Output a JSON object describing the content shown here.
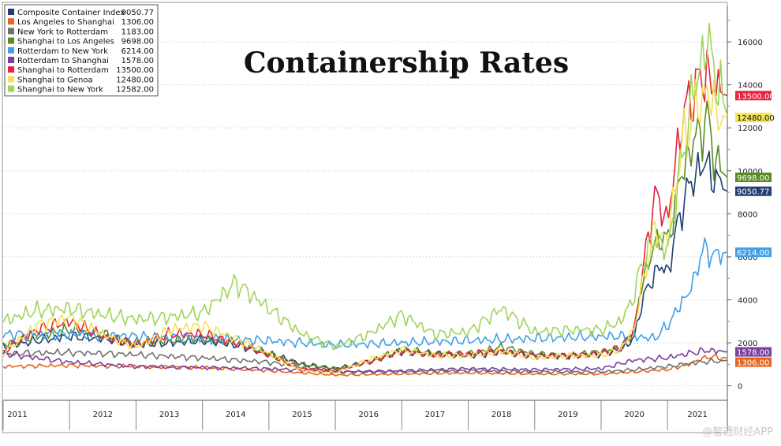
{
  "chart_data": {
    "type": "line",
    "title": "Containership Rates",
    "xlabel": "",
    "ylabel": "",
    "x_start": 2011.0,
    "x_end": 2021.9,
    "ylim": [
      -600,
      17800
    ],
    "y_ticks": [
      0,
      2000,
      4000,
      6000,
      8000,
      10000,
      12000,
      14000,
      16000
    ],
    "years": [
      "2011",
      "2012",
      "2013",
      "2014",
      "2015",
      "2016",
      "2017",
      "2018",
      "2019",
      "2020",
      "2021"
    ],
    "grid": true,
    "legend_position": "top-left",
    "series": [
      {
        "name": "Composite Container Index",
        "last": "9050.77",
        "color": "#1f3f73",
        "x": [
          2011.0,
          2011.5,
          2012.0,
          2012.5,
          2013.0,
          2013.5,
          2014.0,
          2014.5,
          2015.0,
          2015.5,
          2016.0,
          2016.5,
          2017.0,
          2017.5,
          2018.0,
          2018.5,
          2019.0,
          2019.5,
          2020.0,
          2020.3,
          2020.5,
          2020.6,
          2020.8,
          2020.9,
          2021.0,
          2021.2,
          2021.4,
          2021.6,
          2021.7,
          2021.8,
          2021.9
        ],
        "values": [
          1800,
          2100,
          2300,
          2200,
          1900,
          2000,
          2100,
          1900,
          1500,
          1000,
          800,
          1100,
          1600,
          1500,
          1400,
          1600,
          1400,
          1400,
          1500,
          1700,
          2200,
          3800,
          5200,
          5600,
          5200,
          8200,
          9800,
          10400,
          9600,
          9200,
          9051
        ]
      },
      {
        "name": "Los Angeles to Shanghai",
        "last": "1306.00",
        "color": "#e8651d",
        "x": [
          2011.0,
          2012.0,
          2013.0,
          2014.0,
          2015.0,
          2016.0,
          2017.0,
          2018.0,
          2019.0,
          2020.0,
          2020.5,
          2021.0,
          2021.3,
          2021.6,
          2021.9
        ],
        "values": [
          900,
          950,
          900,
          850,
          700,
          500,
          550,
          600,
          550,
          550,
          650,
          750,
          1000,
          1350,
          1306
        ]
      },
      {
        "name": "New York to Rotterdam",
        "last": "1183.00",
        "color": "#707070",
        "x": [
          2011.0,
          2012.0,
          2013.0,
          2014.0,
          2015.0,
          2016.0,
          2017.0,
          2018.0,
          2019.0,
          2020.0,
          2020.5,
          2021.0,
          2021.5,
          2021.9
        ],
        "values": [
          1500,
          1550,
          1450,
          1300,
          1100,
          650,
          650,
          700,
          650,
          650,
          750,
          900,
          1100,
          1183
        ]
      },
      {
        "name": "Shanghai to Los Angeles",
        "last": "9698.00",
        "color": "#5a8a23",
        "x": [
          2011.0,
          2011.5,
          2012.0,
          2012.5,
          2013.0,
          2013.5,
          2014.0,
          2014.5,
          2015.0,
          2015.5,
          2016.0,
          2016.5,
          2017.0,
          2017.5,
          2018.0,
          2018.5,
          2019.0,
          2019.5,
          2020.0,
          2020.3,
          2020.5,
          2020.6,
          2020.8,
          2020.9,
          2021.0,
          2021.2,
          2021.4,
          2021.6,
          2021.7,
          2021.8,
          2021.9
        ],
        "values": [
          1900,
          2300,
          2600,
          2400,
          2000,
          2100,
          2200,
          2000,
          1500,
          1000,
          800,
          1100,
          1700,
          1500,
          1500,
          1800,
          1500,
          1400,
          1600,
          1800,
          2600,
          4600,
          6500,
          7000,
          6600,
          9800,
          11400,
          12400,
          10800,
          10000,
          9698
        ]
      },
      {
        "name": "Rotterdam to New York",
        "last": "6214.00",
        "color": "#41a0e8",
        "x": [
          2011.0,
          2012.0,
          2013.0,
          2014.0,
          2015.0,
          2016.0,
          2017.0,
          2018.0,
          2019.0,
          2020.0,
          2020.5,
          2020.8,
          2021.0,
          2021.2,
          2021.4,
          2021.5,
          2021.7,
          2021.9
        ],
        "values": [
          2400,
          2400,
          2300,
          2200,
          2100,
          1900,
          2000,
          2100,
          2200,
          2300,
          2300,
          2200,
          2800,
          3800,
          4800,
          6300,
          6100,
          6214
        ]
      },
      {
        "name": "Rotterdam to Shanghai",
        "last": "1578.00",
        "color": "#7b3f9e",
        "x": [
          2011.0,
          2012.0,
          2013.0,
          2014.0,
          2015.0,
          2016.0,
          2017.0,
          2018.0,
          2019.0,
          2020.0,
          2020.5,
          2021.0,
          2021.3,
          2021.6,
          2021.9
        ],
        "values": [
          1500,
          1100,
          900,
          850,
          800,
          650,
          700,
          800,
          750,
          800,
          1200,
          1300,
          1500,
          1650,
          1578
        ]
      },
      {
        "name": "Shanghai to Rotterdam",
        "last": "13500.00",
        "color": "#e8233e",
        "x": [
          2011.0,
          2011.5,
          2012.0,
          2012.5,
          2013.0,
          2013.5,
          2014.0,
          2014.5,
          2015.0,
          2015.5,
          2016.0,
          2016.5,
          2017.0,
          2017.5,
          2018.0,
          2018.5,
          2019.0,
          2019.5,
          2020.0,
          2020.3,
          2020.5,
          2020.6,
          2020.8,
          2020.9,
          2021.0,
          2021.2,
          2021.4,
          2021.6,
          2021.7,
          2021.8,
          2021.9
        ],
        "values": [
          1600,
          2600,
          3000,
          2300,
          1900,
          2400,
          2400,
          2000,
          1400,
          800,
          700,
          1100,
          1600,
          1400,
          1500,
          1600,
          1400,
          1400,
          1500,
          1800,
          2600,
          4800,
          8800,
          8400,
          7600,
          12200,
          13800,
          14600,
          13800,
          13600,
          13500
        ]
      },
      {
        "name": "Shanghai to Genoa",
        "last": "12480.00",
        "color": "#f4e356",
        "x": [
          2011.0,
          2011.5,
          2012.0,
          2012.5,
          2013.0,
          2013.5,
          2014.0,
          2014.5,
          2015.0,
          2015.5,
          2016.0,
          2016.5,
          2017.0,
          2017.5,
          2018.0,
          2018.5,
          2019.0,
          2019.5,
          2020.0,
          2020.3,
          2020.5,
          2020.6,
          2020.8,
          2020.9,
          2021.0,
          2021.2,
          2021.4,
          2021.6,
          2021.7,
          2021.8,
          2021.9
        ],
        "values": [
          1500,
          2800,
          3200,
          2400,
          1800,
          2600,
          2800,
          2200,
          1500,
          700,
          600,
          1200,
          1700,
          1400,
          1400,
          1600,
          1300,
          1400,
          1400,
          1700,
          2700,
          4400,
          7200,
          7000,
          6800,
          11000,
          12800,
          13700,
          12900,
          12600,
          12480
        ]
      },
      {
        "name": "Shanghai to New York",
        "last": "12582.00",
        "color": "#9fd45b",
        "x": [
          2011.0,
          2011.5,
          2012.0,
          2012.5,
          2013.0,
          2013.5,
          2014.0,
          2014.5,
          2015.0,
          2015.5,
          2016.0,
          2016.5,
          2017.0,
          2017.5,
          2018.0,
          2018.5,
          2019.0,
          2019.5,
          2020.0,
          2020.3,
          2020.5,
          2020.6,
          2020.8,
          2020.9,
          2021.0,
          2021.2,
          2021.4,
          2021.6,
          2021.7,
          2021.8,
          2021.9
        ],
        "values": [
          3000,
          3500,
          3600,
          3300,
          3100,
          3200,
          3400,
          4800,
          3600,
          2400,
          1800,
          2400,
          3300,
          2400,
          2500,
          3600,
          2500,
          2600,
          2600,
          3000,
          4200,
          5600,
          6800,
          6600,
          6200,
          10200,
          13800,
          16100,
          14800,
          13600,
          12582
        ]
      }
    ],
    "value_labels": [
      {
        "series": "Shanghai to Rotterdam",
        "text": "13500.00",
        "value": 13500,
        "color": "#e8233e"
      },
      {
        "series": "Shanghai to Genoa",
        "text": "12480.00",
        "value": 12480,
        "color": "#f4e356"
      },
      {
        "series": "Shanghai to Los Angeles",
        "text": "9698.00",
        "value": 9698,
        "color": "#5a8a23"
      },
      {
        "series": "Composite Container Index",
        "text": "9050.77",
        "value": 9050.77,
        "color": "#1f3f73"
      },
      {
        "series": "Rotterdam to New York",
        "text": "6214.00",
        "value": 6214,
        "color": "#41a0e8"
      },
      {
        "series": "Rotterdam to Shanghai",
        "text": "1578.00",
        "value": 1578,
        "color": "#7b3f9e"
      },
      {
        "series": "Los Angeles to Shanghai",
        "text": "1306.00",
        "value": 1306,
        "color": "#e8651d"
      }
    ]
  },
  "watermark": "@智通财经APP"
}
